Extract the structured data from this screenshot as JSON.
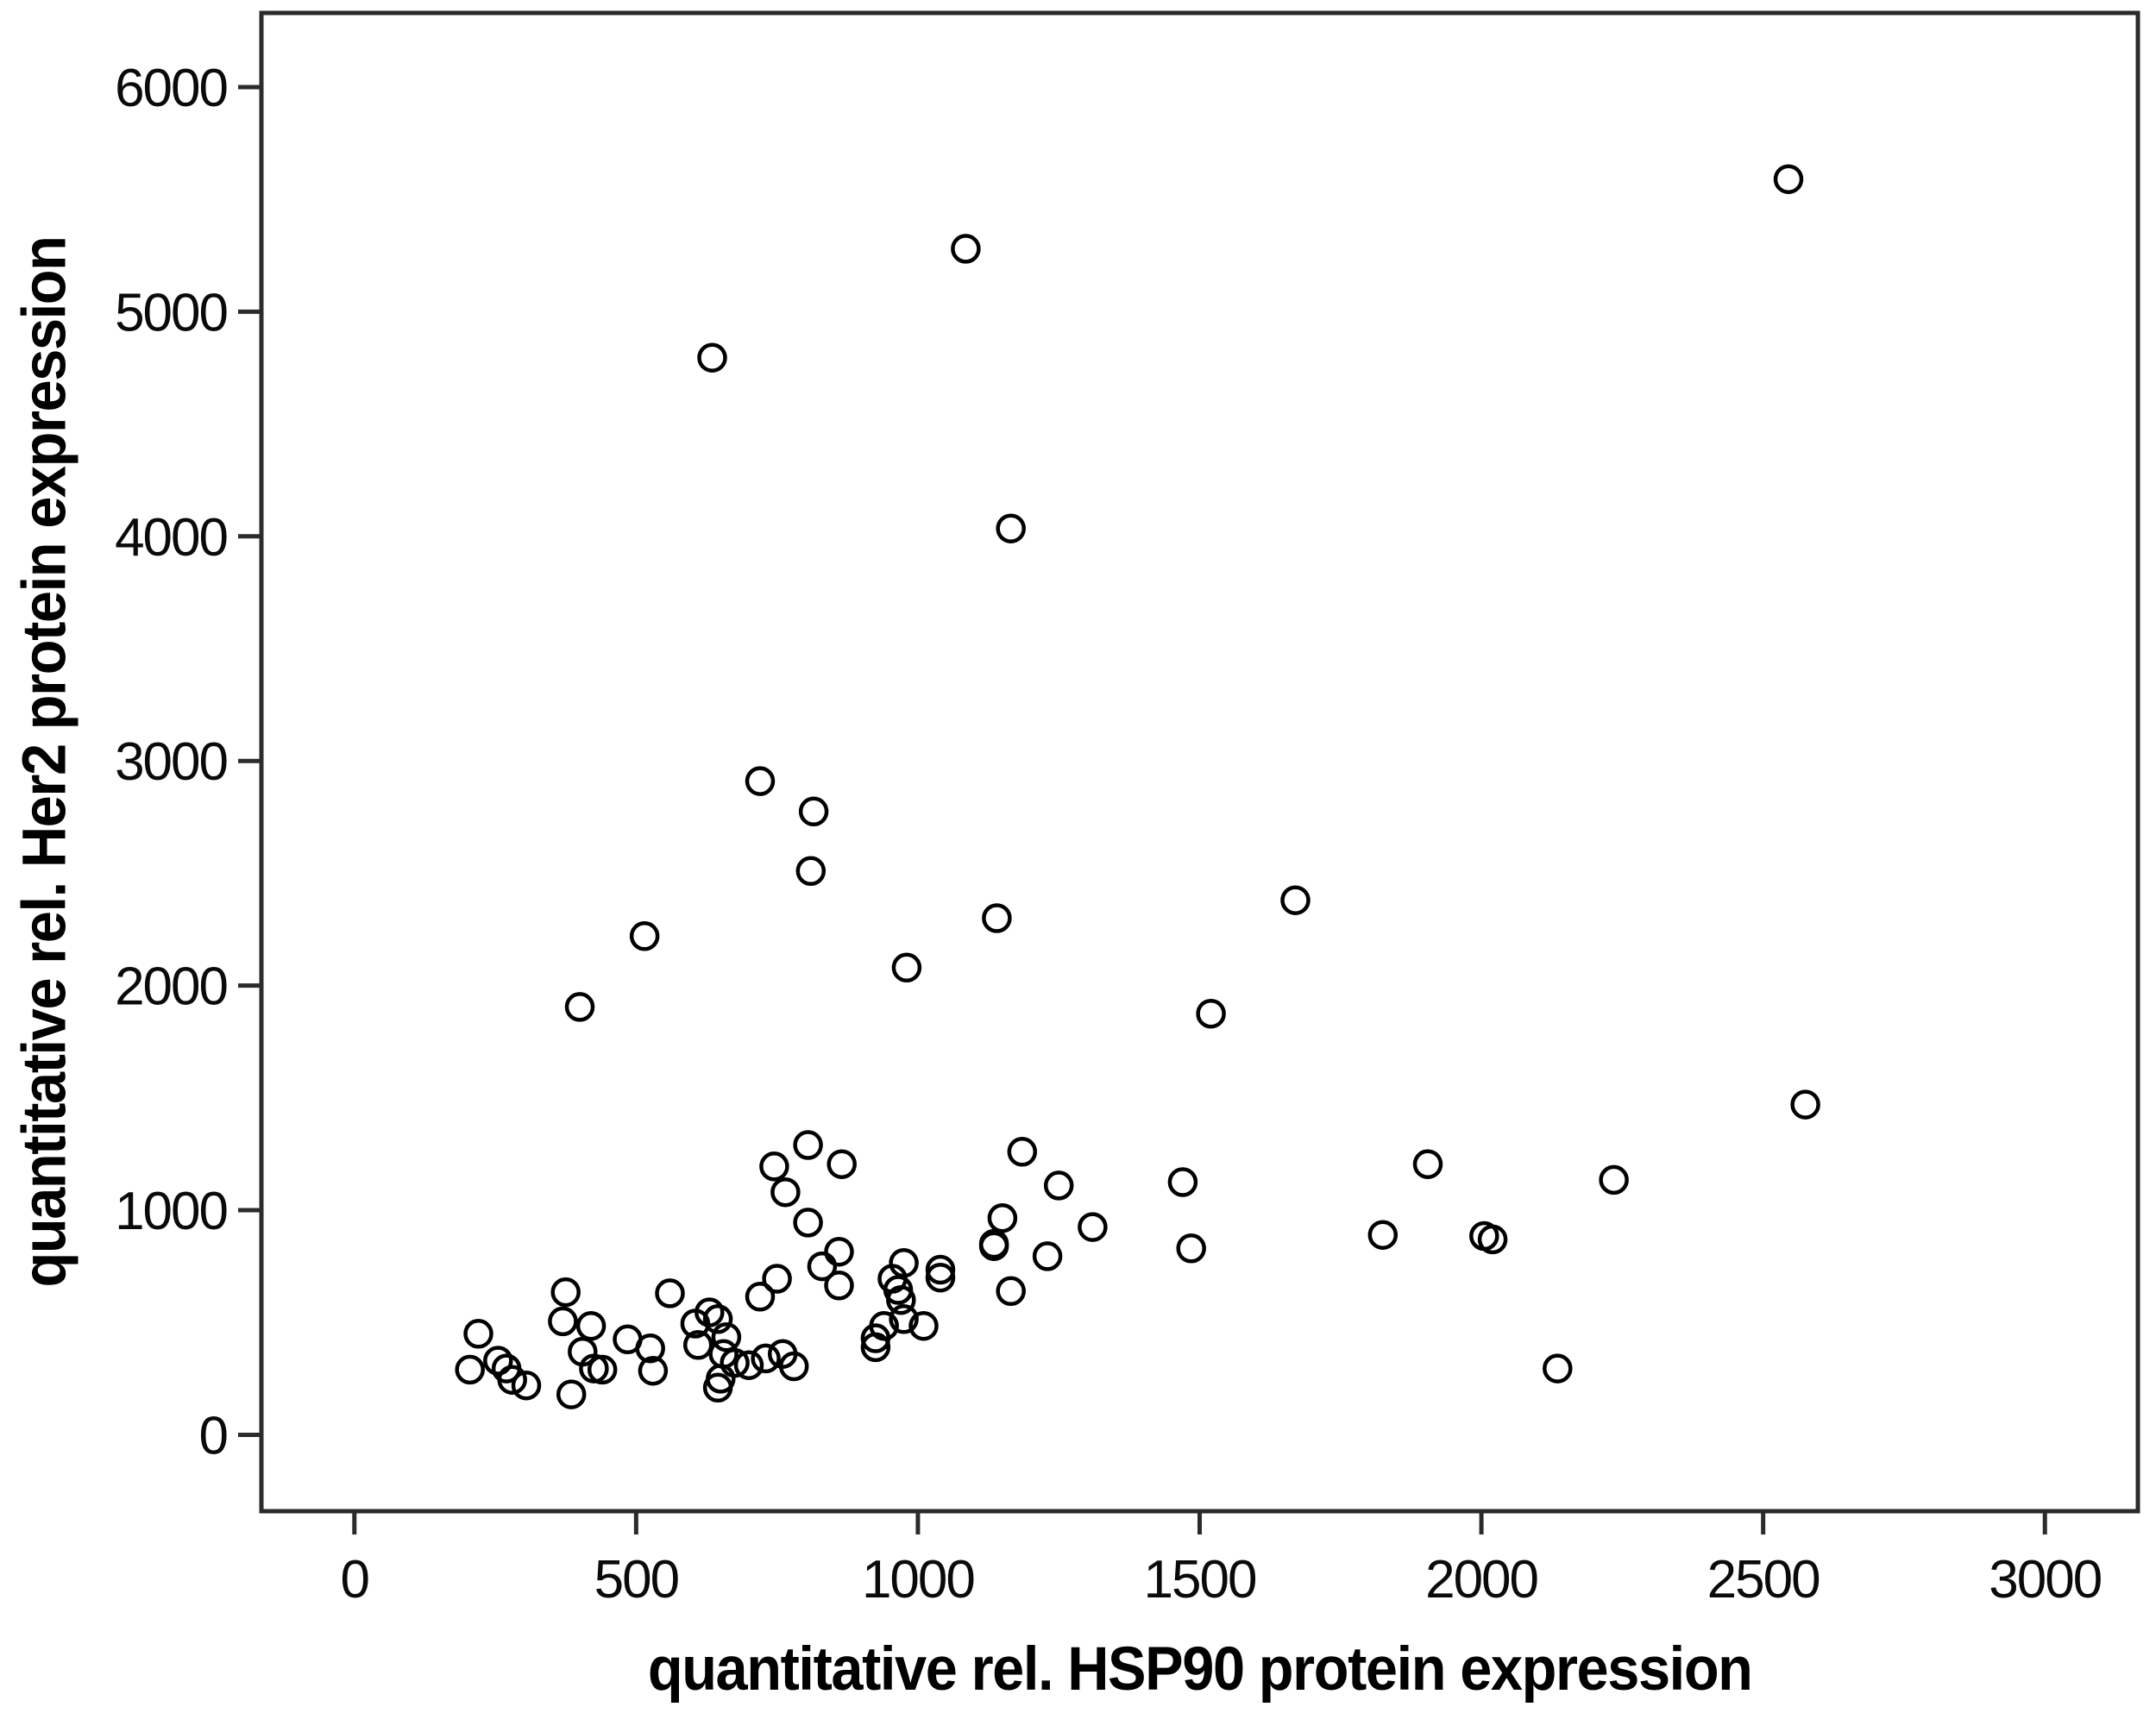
{
  "figure": {
    "background": "#ffffff",
    "frame_color": "#2b2b2b",
    "tick_color": "#2b2b2b",
    "text_color": "#000000"
  },
  "chart_data": {
    "type": "scatter",
    "title": "",
    "xlabel": "quantitative rel. HSP90 protein expression",
    "ylabel": "quantitative rel. Her2 protein expression",
    "x_ticks": [
      0,
      500,
      1000,
      1500,
      2000,
      2500,
      3000
    ],
    "y_ticks": [
      0,
      1000,
      2000,
      3000,
      4000,
      5000,
      6000
    ],
    "xlim": [
      -165,
      3165
    ],
    "ylim": [
      -340,
      6330
    ],
    "grid": false,
    "legend_position": "none",
    "marker": {
      "shape": "open-circle",
      "color": "#000000",
      "radius_px": 15,
      "stroke_px": 4.5
    },
    "points": [
      [
        2545,
        5590
      ],
      [
        1085,
        5280
      ],
      [
        635,
        4795
      ],
      [
        1165,
        4035
      ],
      [
        720,
        2910
      ],
      [
        815,
        2775
      ],
      [
        810,
        2510
      ],
      [
        1670,
        2380
      ],
      [
        515,
        2220
      ],
      [
        1140,
        2300
      ],
      [
        980,
        2080
      ],
      [
        400,
        1905
      ],
      [
        1520,
        1875
      ],
      [
        2575,
        1470
      ],
      [
        745,
        1195
      ],
      [
        865,
        1205
      ],
      [
        765,
        1080
      ],
      [
        1250,
        1110
      ],
      [
        1470,
        1125
      ],
      [
        1905,
        1205
      ],
      [
        2235,
        1135
      ],
      [
        1825,
        890
      ],
      [
        2005,
        885
      ],
      [
        2020,
        870
      ],
      [
        1150,
        965
      ],
      [
        1310,
        925
      ],
      [
        1135,
        850
      ],
      [
        1230,
        795
      ],
      [
        1485,
        830
      ],
      [
        805,
        1290
      ],
      [
        1185,
        1260
      ],
      [
        805,
        945
      ],
      [
        860,
        815
      ],
      [
        830,
        750
      ],
      [
        860,
        665
      ],
      [
        750,
        695
      ],
      [
        720,
        615
      ],
      [
        975,
        765
      ],
      [
        955,
        695
      ],
      [
        965,
        645
      ],
      [
        970,
        600
      ],
      [
        975,
        515
      ],
      [
        940,
        485
      ],
      [
        925,
        430
      ],
      [
        1040,
        735
      ],
      [
        1040,
        700
      ],
      [
        1010,
        485
      ],
      [
        1135,
        840
      ],
      [
        1165,
        640
      ],
      [
        220,
        450
      ],
      [
        205,
        290
      ],
      [
        255,
        330
      ],
      [
        270,
        295
      ],
      [
        280,
        245
      ],
      [
        305,
        220
      ],
      [
        375,
        635
      ],
      [
        370,
        505
      ],
      [
        420,
        485
      ],
      [
        405,
        370
      ],
      [
        425,
        295
      ],
      [
        440,
        290
      ],
      [
        485,
        425
      ],
      [
        525,
        385
      ],
      [
        530,
        285
      ],
      [
        560,
        630
      ],
      [
        605,
        495
      ],
      [
        630,
        545
      ],
      [
        645,
        515
      ],
      [
        660,
        435
      ],
      [
        655,
        360
      ],
      [
        675,
        320
      ],
      [
        700,
        310
      ],
      [
        650,
        250
      ],
      [
        645,
        210
      ],
      [
        385,
        180
      ],
      [
        610,
        400
      ],
      [
        780,
        305
      ],
      [
        760,
        360
      ],
      [
        730,
        340
      ],
      [
        925,
        390
      ],
      [
        2135,
        295
      ]
    ]
  }
}
